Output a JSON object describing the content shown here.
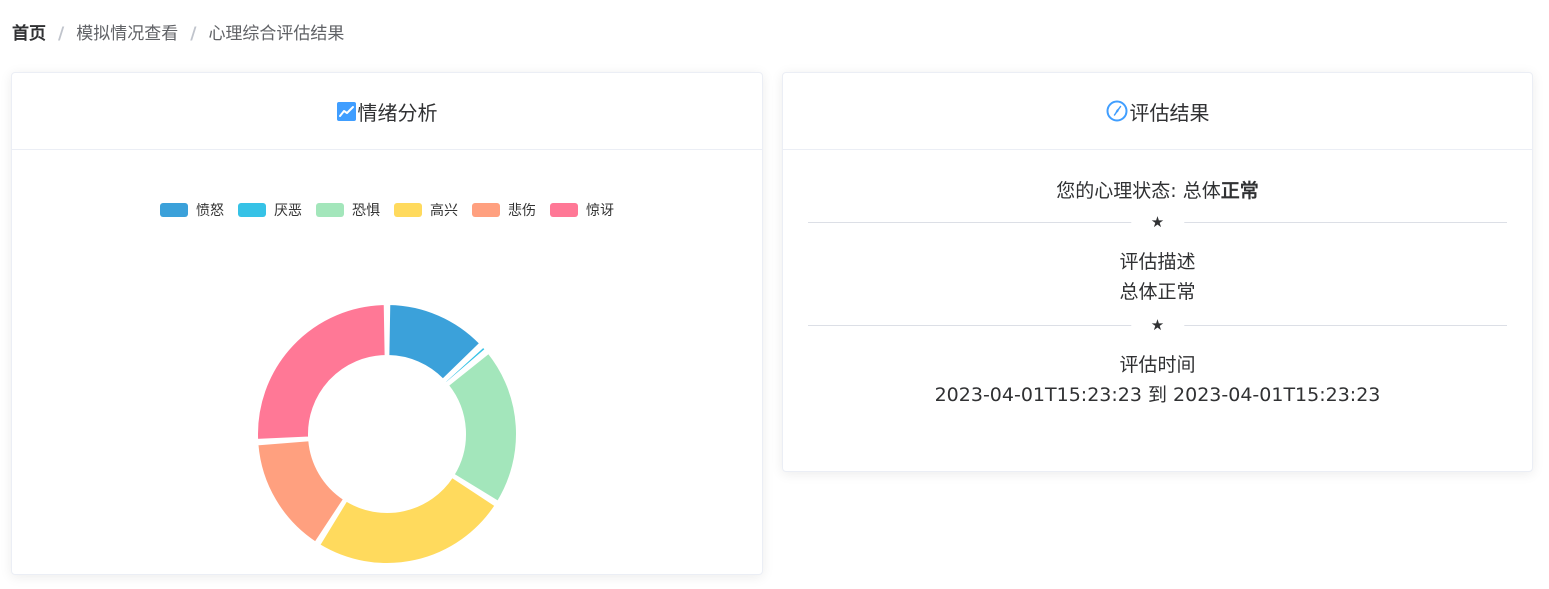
{
  "breadcrumb": {
    "home": "首页",
    "separator": "/",
    "item1": "模拟情况查看",
    "item2": "心理综合评估结果"
  },
  "left_card": {
    "title": "情绪分析",
    "icon": "trend-chart-icon"
  },
  "right_card": {
    "title": "评估结果",
    "icon": "compass-icon",
    "status_prefix": "您的心理状态: 总体",
    "status_value": "正常",
    "star": "★",
    "desc_label": "评估描述",
    "desc_value": "总体正常",
    "time_label": "评估时间",
    "time_value": "2023-04-01T15:23:23 到 2023-04-01T15:23:23"
  },
  "chart_data": {
    "type": "pie",
    "donut": true,
    "legend_position": "top-center",
    "categories": [
      "愤怒",
      "厌恶",
      "恐惧",
      "高兴",
      "悲伤",
      "惊讶"
    ],
    "values": [
      0.13,
      0.01,
      0.2,
      0.25,
      0.15,
      0.26
    ],
    "colors": [
      "#3ba1da",
      "#36c2e6",
      "#a3e6bb",
      "#ffda5d",
      "#ffa07f",
      "#ff7896"
    ]
  }
}
